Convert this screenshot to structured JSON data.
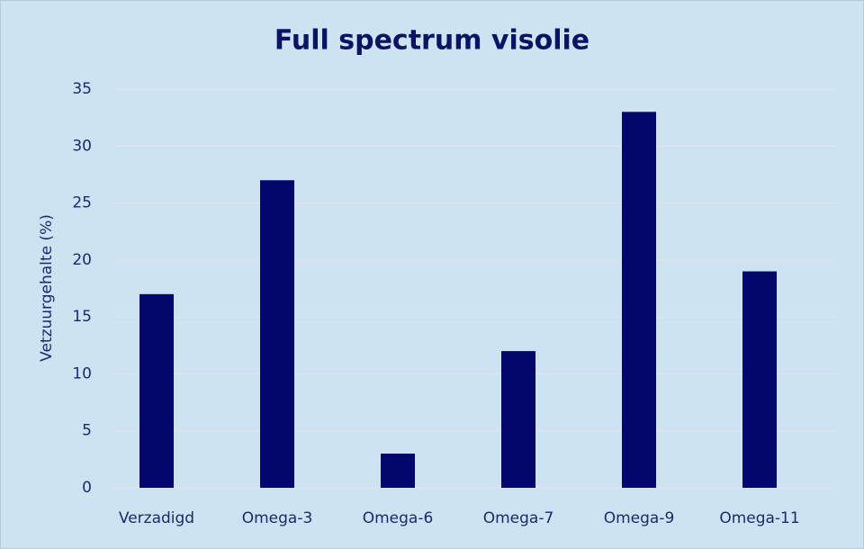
{
  "chart_data": {
    "type": "bar",
    "title": "Full spectrum visolie",
    "y_label": "Vetzuurgehalte (%)",
    "categories": [
      "Verzadigd",
      "Omega-3",
      "Omega-6",
      "Omega-7",
      "Omega-9",
      "Omega-11"
    ],
    "values": [
      17,
      27,
      3,
      12,
      33,
      19
    ],
    "color": "#03066b",
    "ylim": [
      0,
      35
    ],
    "yticks": [
      0,
      5,
      10,
      15,
      20,
      25,
      30,
      35
    ],
    "grid": true
  }
}
